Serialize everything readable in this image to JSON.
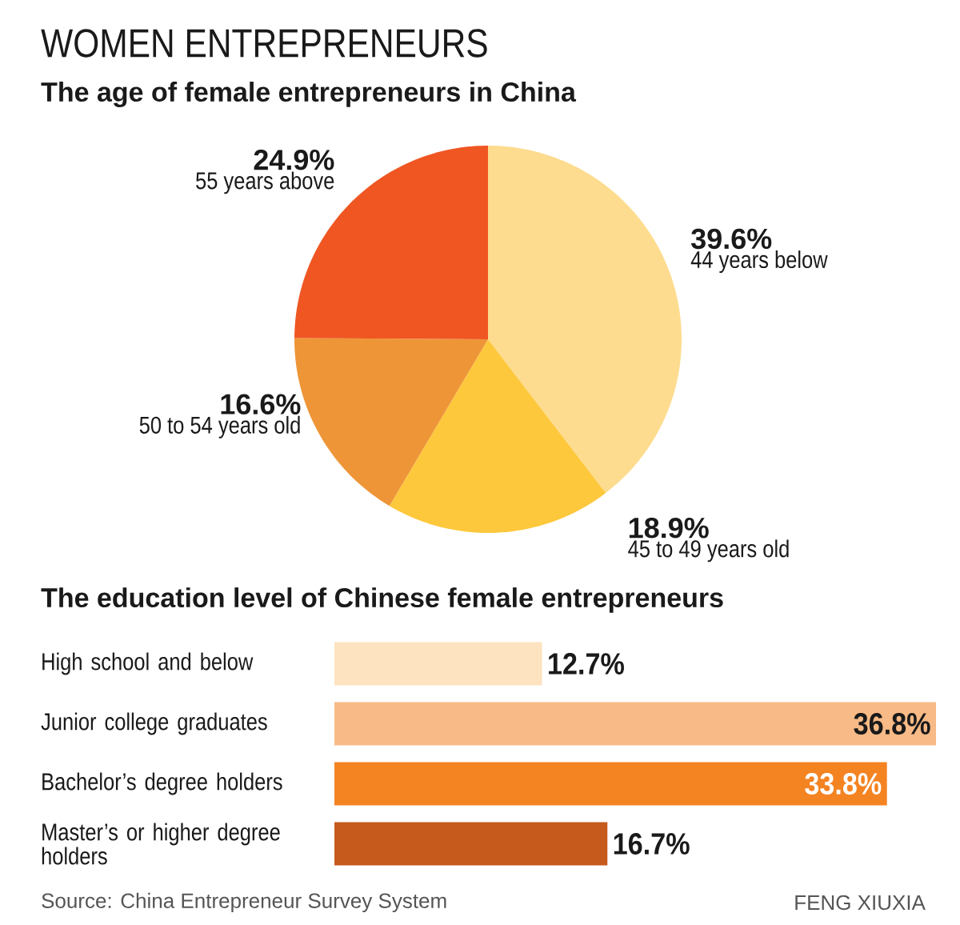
{
  "chart_data": [
    {
      "type": "pie",
      "title": "WOMEN ENTREPRENEURS",
      "subtitle": "The age of female entrepreneurs in China",
      "categories": [
        "44 years below",
        "45 to 49 years old",
        "50 to 54 years old",
        "55 years above"
      ],
      "values": [
        39.6,
        18.9,
        16.6,
        24.9
      ],
      "value_labels": [
        "39.6%",
        "18.9%",
        "16.6%",
        "24.9%"
      ],
      "colors": [
        "#fddc8f",
        "#fdc83c",
        "#ee9538",
        "#ef5622"
      ]
    },
    {
      "type": "bar",
      "orientation": "horizontal",
      "title": "The education level of Chinese female entrepreneurs",
      "categories": [
        "High school and below",
        "Junior college graduates",
        "Bachelor’s degree holders",
        "Master’s or higher degree holders"
      ],
      "values": [
        12.7,
        36.8,
        33.8,
        16.7
      ],
      "value_labels": [
        "12.7%",
        "36.8%",
        "33.8%",
        "16.7%"
      ],
      "colors": [
        "#fde3c0",
        "#f8ba86",
        "#f48322",
        "#c65a1c"
      ],
      "annotations": [
        "Source: China Entrepreneur Survey System",
        "FENG XIUXIA"
      ]
    }
  ]
}
